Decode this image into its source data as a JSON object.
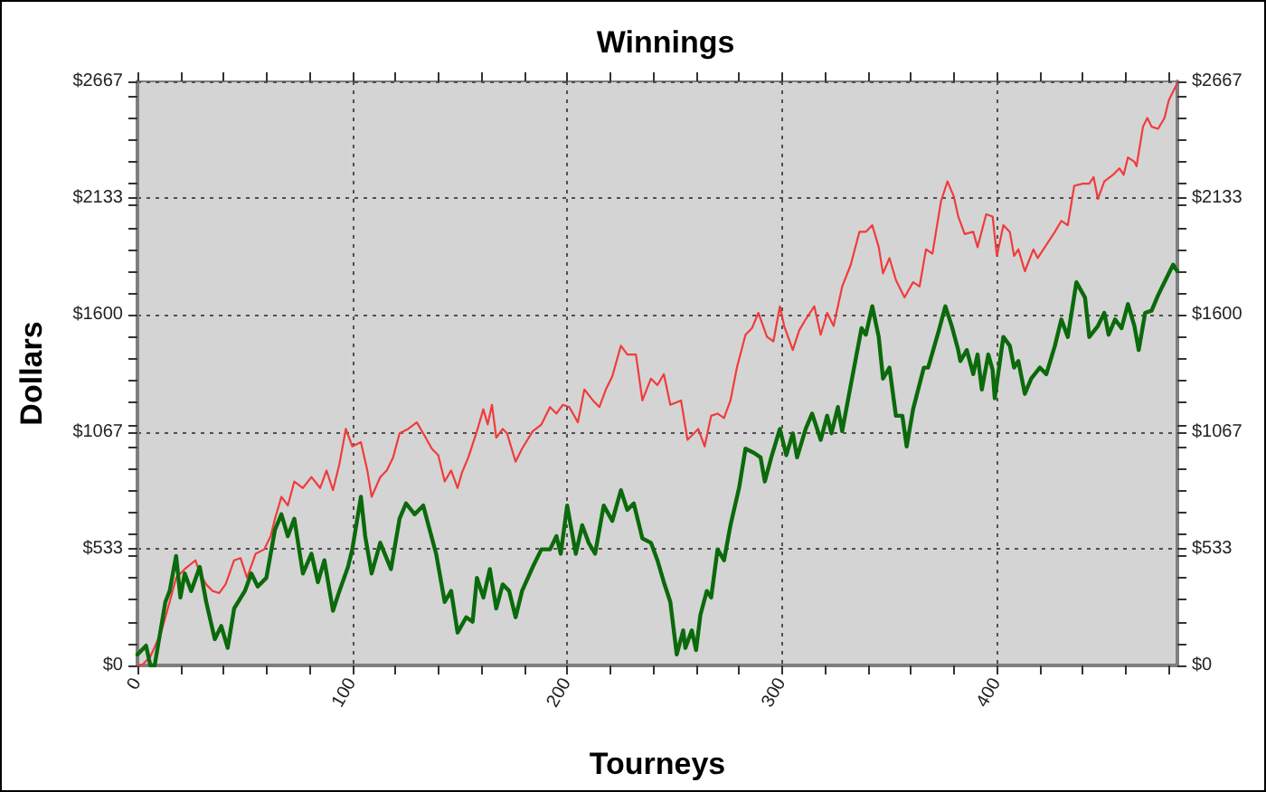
{
  "chart_data": {
    "type": "line",
    "title": "Winnings",
    "xlabel": "Tourneys",
    "ylabel": "Dollars",
    "xlim": [
      0,
      484
    ],
    "xticks": [
      0,
      {
        "value": 20,
        "label": null
      },
      {
        "value": 40,
        "label": null
      },
      {
        "value": 60,
        "label": null
      },
      {
        "value": 80,
        "label": null
      },
      100,
      {
        "value": 120,
        "label": null
      },
      {
        "value": 140,
        "label": null
      },
      {
        "value": 160,
        "label": null
      },
      {
        "value": 180,
        "label": null
      },
      200,
      {
        "value": 220,
        "label": null
      },
      {
        "value": 240,
        "label": null
      },
      {
        "value": 260,
        "label": null
      },
      {
        "value": 280,
        "label": null
      },
      300,
      {
        "value": 320,
        "label": null
      },
      {
        "value": 340,
        "label": null
      },
      {
        "value": 360,
        "label": null
      },
      {
        "value": 380,
        "label": null
      },
      400,
      {
        "value": 420,
        "label": null
      },
      {
        "value": 440,
        "label": null
      },
      {
        "value": 460,
        "label": null
      },
      {
        "value": 480,
        "label": null
      }
    ],
    "ylim": [
      0,
      2667
    ],
    "yticks": [
      {
        "value": 0,
        "label": "$0"
      },
      {
        "value": 100,
        "label": null
      },
      {
        "value": 200,
        "label": null
      },
      {
        "value": 300,
        "label": null
      },
      {
        "value": 400,
        "label": null
      },
      {
        "value": 500,
        "label": null
      },
      {
        "value": 533,
        "label": "$533"
      },
      {
        "value": 600,
        "label": null
      },
      {
        "value": 700,
        "label": null
      },
      {
        "value": 800,
        "label": null
      },
      {
        "value": 900,
        "label": null
      },
      {
        "value": 1000,
        "label": null
      },
      {
        "value": 1067,
        "label": "$1067"
      },
      {
        "value": 1100,
        "label": null
      },
      {
        "value": 1200,
        "label": null
      },
      {
        "value": 1300,
        "label": null
      },
      {
        "value": 1400,
        "label": null
      },
      {
        "value": 1500,
        "label": null
      },
      {
        "value": 1600,
        "label": "$1600"
      },
      {
        "value": 1700,
        "label": null
      },
      {
        "value": 1800,
        "label": null
      },
      {
        "value": 1900,
        "label": null
      },
      {
        "value": 2000,
        "label": null
      },
      {
        "value": 2100,
        "label": null
      },
      {
        "value": 2133,
        "label": "$2133"
      },
      {
        "value": 2200,
        "label": null
      },
      {
        "value": 2300,
        "label": null
      },
      {
        "value": 2400,
        "label": null
      },
      {
        "value": 2500,
        "label": null
      },
      {
        "value": 2600,
        "label": null
      },
      {
        "value": 2667,
        "label": "$2667"
      }
    ],
    "y2lim": [
      0,
      2667
    ],
    "y2ticks": [
      {
        "value": 0,
        "label": "$0"
      },
      {
        "value": 100,
        "label": null
      },
      {
        "value": 200,
        "label": null
      },
      {
        "value": 300,
        "label": null
      },
      {
        "value": 400,
        "label": null
      },
      {
        "value": 500,
        "label": null
      },
      {
        "value": 533,
        "label": "$533"
      },
      {
        "value": 600,
        "label": null
      },
      {
        "value": 700,
        "label": null
      },
      {
        "value": 800,
        "label": null
      },
      {
        "value": 900,
        "label": null
      },
      {
        "value": 1000,
        "label": null
      },
      {
        "value": 1067,
        "label": "$1067"
      },
      {
        "value": 1100,
        "label": null
      },
      {
        "value": 1200,
        "label": null
      },
      {
        "value": 1300,
        "label": null
      },
      {
        "value": 1400,
        "label": null
      },
      {
        "value": 1500,
        "label": null
      },
      {
        "value": 1600,
        "label": "$1600"
      },
      {
        "value": 1700,
        "label": null
      },
      {
        "value": 1800,
        "label": null
      },
      {
        "value": 1900,
        "label": null
      },
      {
        "value": 2000,
        "label": null
      },
      {
        "value": 2100,
        "label": null
      },
      {
        "value": 2133,
        "label": "$2133"
      },
      {
        "value": 2200,
        "label": null
      },
      {
        "value": 2300,
        "label": null
      },
      {
        "value": 2400,
        "label": null
      },
      {
        "value": 2500,
        "label": null
      },
      {
        "value": 2600,
        "label": null
      },
      {
        "value": 2667,
        "label": "$2667"
      }
    ],
    "grid": true,
    "marker": "none",
    "line_style": "solid",
    "series": [
      {
        "color": "#f03c3c",
        "x": [
          0,
          2,
          6,
          11,
          15,
          18,
          22,
          27,
          29,
          32,
          35,
          38,
          41,
          45,
          48,
          51,
          55,
          59,
          62,
          64,
          67,
          70,
          73,
          77,
          81,
          85,
          88,
          91,
          94,
          97,
          100,
          104,
          107,
          109,
          113,
          116,
          119,
          122,
          126,
          130,
          133,
          137,
          140,
          143,
          146,
          149,
          151,
          154,
          158,
          161,
          163,
          165,
          167,
          170,
          172,
          176,
          179,
          184,
          188,
          192,
          195,
          198,
          201,
          205,
          208,
          212,
          215,
          218,
          221,
          225,
          228,
          232,
          235,
          239,
          242,
          245,
          248,
          253,
          256,
          261,
          264,
          267,
          270,
          273,
          276,
          279,
          283,
          286,
          289,
          293,
          296,
          299,
          301,
          305,
          308,
          311,
          315,
          318,
          321,
          324,
          328,
          332,
          336,
          339,
          342,
          345,
          347,
          350,
          353,
          357,
          361,
          364,
          367,
          370,
          374,
          377,
          380,
          382,
          385,
          389,
          391,
          395,
          398,
          400,
          403,
          406,
          408,
          410,
          413,
          417,
          419,
          423,
          427,
          430,
          433,
          436,
          440,
          443,
          445,
          447,
          450,
          454,
          457,
          459,
          461,
          464,
          465,
          468,
          470,
          472,
          475,
          478,
          480,
          484
        ],
        "values": [
          0,
          0,
          40,
          150,
          290,
          400,
          440,
          480,
          420,
          370,
          340,
          330,
          370,
          480,
          490,
          400,
          510,
          530,
          590,
          670,
          770,
          730,
          840,
          810,
          860,
          810,
          890,
          800,
          920,
          1080,
          1000,
          1020,
          890,
          770,
          860,
          890,
          950,
          1060,
          1080,
          1110,
          1060,
          990,
          960,
          840,
          890,
          810,
          880,
          950,
          1070,
          1170,
          1100,
          1190,
          1040,
          1080,
          1060,
          930,
          990,
          1070,
          1100,
          1180,
          1150,
          1190,
          1180,
          1110,
          1260,
          1210,
          1180,
          1260,
          1320,
          1460,
          1420,
          1420,
          1210,
          1310,
          1280,
          1330,
          1190,
          1210,
          1030,
          1080,
          1000,
          1140,
          1150,
          1130,
          1210,
          1360,
          1510,
          1540,
          1610,
          1500,
          1480,
          1640,
          1550,
          1440,
          1530,
          1580,
          1640,
          1510,
          1610,
          1550,
          1730,
          1830,
          1980,
          1980,
          2010,
          1910,
          1790,
          1860,
          1760,
          1680,
          1750,
          1730,
          1900,
          1880,
          2120,
          2210,
          2140,
          2050,
          1970,
          1980,
          1910,
          2060,
          2050,
          1870,
          2010,
          1980,
          1870,
          1900,
          1800,
          1900,
          1860,
          1920,
          1980,
          2030,
          2010,
          2190,
          2200,
          2200,
          2230,
          2130,
          2210,
          2240,
          2270,
          2240,
          2320,
          2300,
          2280,
          2460,
          2500,
          2460,
          2450,
          2500,
          2580,
          2660
        ]
      },
      {
        "color": "#0b6a0b",
        "x": [
          0,
          4,
          6,
          8,
          13,
          15,
          18,
          20,
          22,
          25,
          29,
          32,
          36,
          39,
          42,
          45,
          50,
          53,
          56,
          60,
          64,
          67,
          70,
          73,
          77,
          81,
          84,
          87,
          91,
          94,
          98,
          100,
          104,
          106,
          109,
          113,
          118,
          122,
          125,
          129,
          133,
          136,
          139,
          143,
          146,
          149,
          153,
          156,
          158,
          161,
          164,
          167,
          170,
          173,
          176,
          179,
          184,
          188,
          192,
          195,
          197,
          200,
          204,
          207,
          210,
          213,
          217,
          221,
          225,
          228,
          231,
          235,
          239,
          242,
          245,
          248,
          251,
          254,
          255,
          258,
          260,
          262,
          265,
          267,
          270,
          273,
          276,
          280,
          283,
          287,
          290,
          292,
          295,
          299,
          302,
          305,
          307,
          311,
          314,
          318,
          321,
          323,
          326,
          328,
          332,
          337,
          339,
          342,
          345,
          347,
          350,
          353,
          356,
          358,
          361,
          366,
          368,
          373,
          376,
          379,
          382,
          383,
          386,
          389,
          391,
          393,
          396,
          398,
          399,
          403,
          406,
          408,
          410,
          413,
          416,
          420,
          423,
          427,
          430,
          433,
          437,
          441,
          443,
          447,
          450,
          452,
          455,
          458,
          461,
          464,
          466,
          469,
          472,
          475,
          479,
          482,
          484
        ],
        "values": [
          50,
          90,
          0,
          0,
          290,
          340,
          500,
          310,
          420,
          340,
          450,
          290,
          120,
          180,
          80,
          260,
          340,
          420,
          360,
          400,
          620,
          690,
          590,
          670,
          420,
          510,
          380,
          480,
          250,
          340,
          450,
          530,
          770,
          590,
          420,
          560,
          440,
          670,
          740,
          690,
          730,
          620,
          510,
          290,
          340,
          150,
          220,
          200,
          400,
          310,
          440,
          260,
          370,
          340,
          220,
          340,
          450,
          530,
          530,
          590,
          510,
          730,
          510,
          640,
          560,
          510,
          730,
          660,
          800,
          710,
          740,
          580,
          560,
          480,
          380,
          290,
          50,
          160,
          80,
          160,
          70,
          230,
          340,
          310,
          530,
          480,
          640,
          810,
          990,
          970,
          950,
          840,
          950,
          1080,
          960,
          1060,
          950,
          1080,
          1150,
          1030,
          1140,
          1060,
          1180,
          1070,
          1280,
          1540,
          1510,
          1640,
          1500,
          1310,
          1360,
          1140,
          1140,
          1000,
          1170,
          1360,
          1360,
          1530,
          1640,
          1550,
          1440,
          1390,
          1440,
          1330,
          1420,
          1260,
          1420,
          1350,
          1220,
          1500,
          1460,
          1360,
          1390,
          1240,
          1310,
          1360,
          1330,
          1460,
          1580,
          1500,
          1750,
          1680,
          1500,
          1550,
          1610,
          1510,
          1580,
          1540,
          1650,
          1550,
          1440,
          1610,
          1620,
          1690,
          1770,
          1830,
          1800
        ]
      }
    ]
  }
}
